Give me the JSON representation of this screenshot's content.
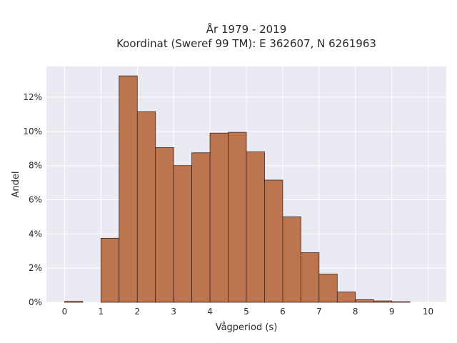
{
  "chart_data": {
    "type": "bar",
    "title": "År 1979 - 2019",
    "subtitle": "Koordinat (Sweref 99 TM): E 362607, N 6261963",
    "xlabel": "Vågperiod (s)",
    "ylabel": "Andel",
    "xlim": [
      -0.5,
      10.5
    ],
    "ylim": [
      0,
      13.8
    ],
    "x_ticks": [
      "0",
      "1",
      "2",
      "3",
      "4",
      "5",
      "6",
      "7",
      "8",
      "9",
      "10"
    ],
    "y_ticks": [
      "0%",
      "2%",
      "4%",
      "6%",
      "8%",
      "10%",
      "12%"
    ],
    "y_tick_values": [
      0,
      2,
      4,
      6,
      8,
      10,
      12
    ],
    "bin_width": 0.5,
    "bins": [
      {
        "start": 0.0,
        "value": 0.05
      },
      {
        "start": 0.5,
        "value": 0.0
      },
      {
        "start": 1.0,
        "value": 3.75
      },
      {
        "start": 1.5,
        "value": 13.25
      },
      {
        "start": 2.0,
        "value": 11.15
      },
      {
        "start": 2.5,
        "value": 9.05
      },
      {
        "start": 3.0,
        "value": 8.0
      },
      {
        "start": 3.5,
        "value": 8.75
      },
      {
        "start": 4.0,
        "value": 9.9
      },
      {
        "start": 4.5,
        "value": 9.95
      },
      {
        "start": 5.0,
        "value": 8.8
      },
      {
        "start": 5.5,
        "value": 7.15
      },
      {
        "start": 6.0,
        "value": 5.0
      },
      {
        "start": 6.5,
        "value": 2.9
      },
      {
        "start": 7.0,
        "value": 1.65
      },
      {
        "start": 7.5,
        "value": 0.6
      },
      {
        "start": 8.0,
        "value": 0.15
      },
      {
        "start": 8.5,
        "value": 0.08
      },
      {
        "start": 9.0,
        "value": 0.03
      }
    ],
    "grid": true,
    "colors": {
      "bar_fill": "#bd7550",
      "bar_edge": "#3d2418",
      "plot_background": "#eaeaf2",
      "grid": "#ffffff"
    }
  }
}
